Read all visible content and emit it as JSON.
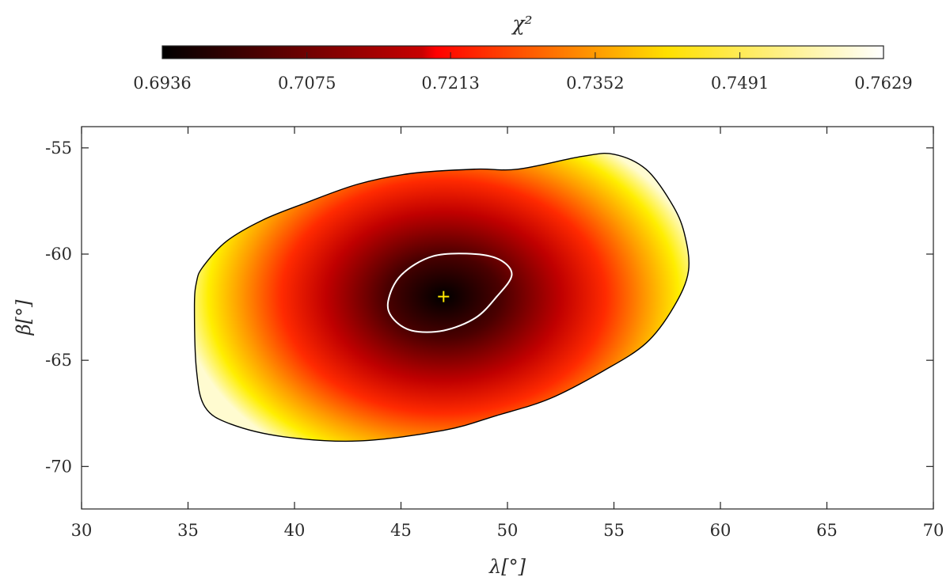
{
  "chart_data": {
    "type": "heatmap",
    "title": "",
    "xlabel": "λ[°]",
    "ylabel": "β[°]",
    "xlim": [
      30,
      70
    ],
    "ylim": [
      -72,
      -54
    ],
    "xticks": [
      30,
      35,
      40,
      45,
      50,
      55,
      60,
      65,
      70
    ],
    "yticks": [
      -55,
      -60,
      -65,
      -70
    ],
    "grid": false,
    "colorbar": {
      "title": "χ²",
      "location": "top",
      "colormap": "hot",
      "range": [
        0.6936,
        0.7629
      ],
      "ticks": [
        "0.6936",
        "0.7075",
        "0.7213",
        "0.7352",
        "0.7491",
        "0.7629"
      ]
    },
    "colors": {
      "outer_contour": "#000000",
      "inner_contour": "#ffffff",
      "minimum_marker": "#ffe600"
    },
    "minimum": {
      "x": 47.0,
      "y": -62.0
    },
    "outer_contour": [
      [
        35.7,
        -60.6
      ],
      [
        36.8,
        -59.4
      ],
      [
        38.5,
        -58.4
      ],
      [
        40.5,
        -57.6
      ],
      [
        43.0,
        -56.7
      ],
      [
        45.5,
        -56.2
      ],
      [
        48.5,
        -56.0
      ],
      [
        50.5,
        -56.0
      ],
      [
        53.5,
        -55.4
      ],
      [
        55.0,
        -55.3
      ],
      [
        56.5,
        -56.0
      ],
      [
        57.7,
        -57.6
      ],
      [
        58.3,
        -59.0
      ],
      [
        58.5,
        -60.8
      ],
      [
        57.8,
        -62.5
      ],
      [
        56.5,
        -64.2
      ],
      [
        54.5,
        -65.5
      ],
      [
        52.0,
        -66.8
      ],
      [
        49.5,
        -67.6
      ],
      [
        47.0,
        -68.3
      ],
      [
        43.0,
        -68.8
      ],
      [
        39.5,
        -68.6
      ],
      [
        37.0,
        -68.0
      ],
      [
        35.8,
        -67.2
      ],
      [
        35.4,
        -65.5
      ],
      [
        35.3,
        -62.5
      ],
      [
        35.4,
        -61.3
      ]
    ],
    "inner_contour": [
      [
        45.0,
        -61.0
      ],
      [
        46.5,
        -60.1
      ],
      [
        48.5,
        -60.0
      ],
      [
        49.7,
        -60.3
      ],
      [
        50.2,
        -61.0
      ],
      [
        49.5,
        -62.0
      ],
      [
        48.5,
        -63.0
      ],
      [
        47.0,
        -63.6
      ],
      [
        45.5,
        -63.6
      ],
      [
        44.6,
        -63.0
      ],
      [
        44.4,
        -62.2
      ]
    ]
  }
}
